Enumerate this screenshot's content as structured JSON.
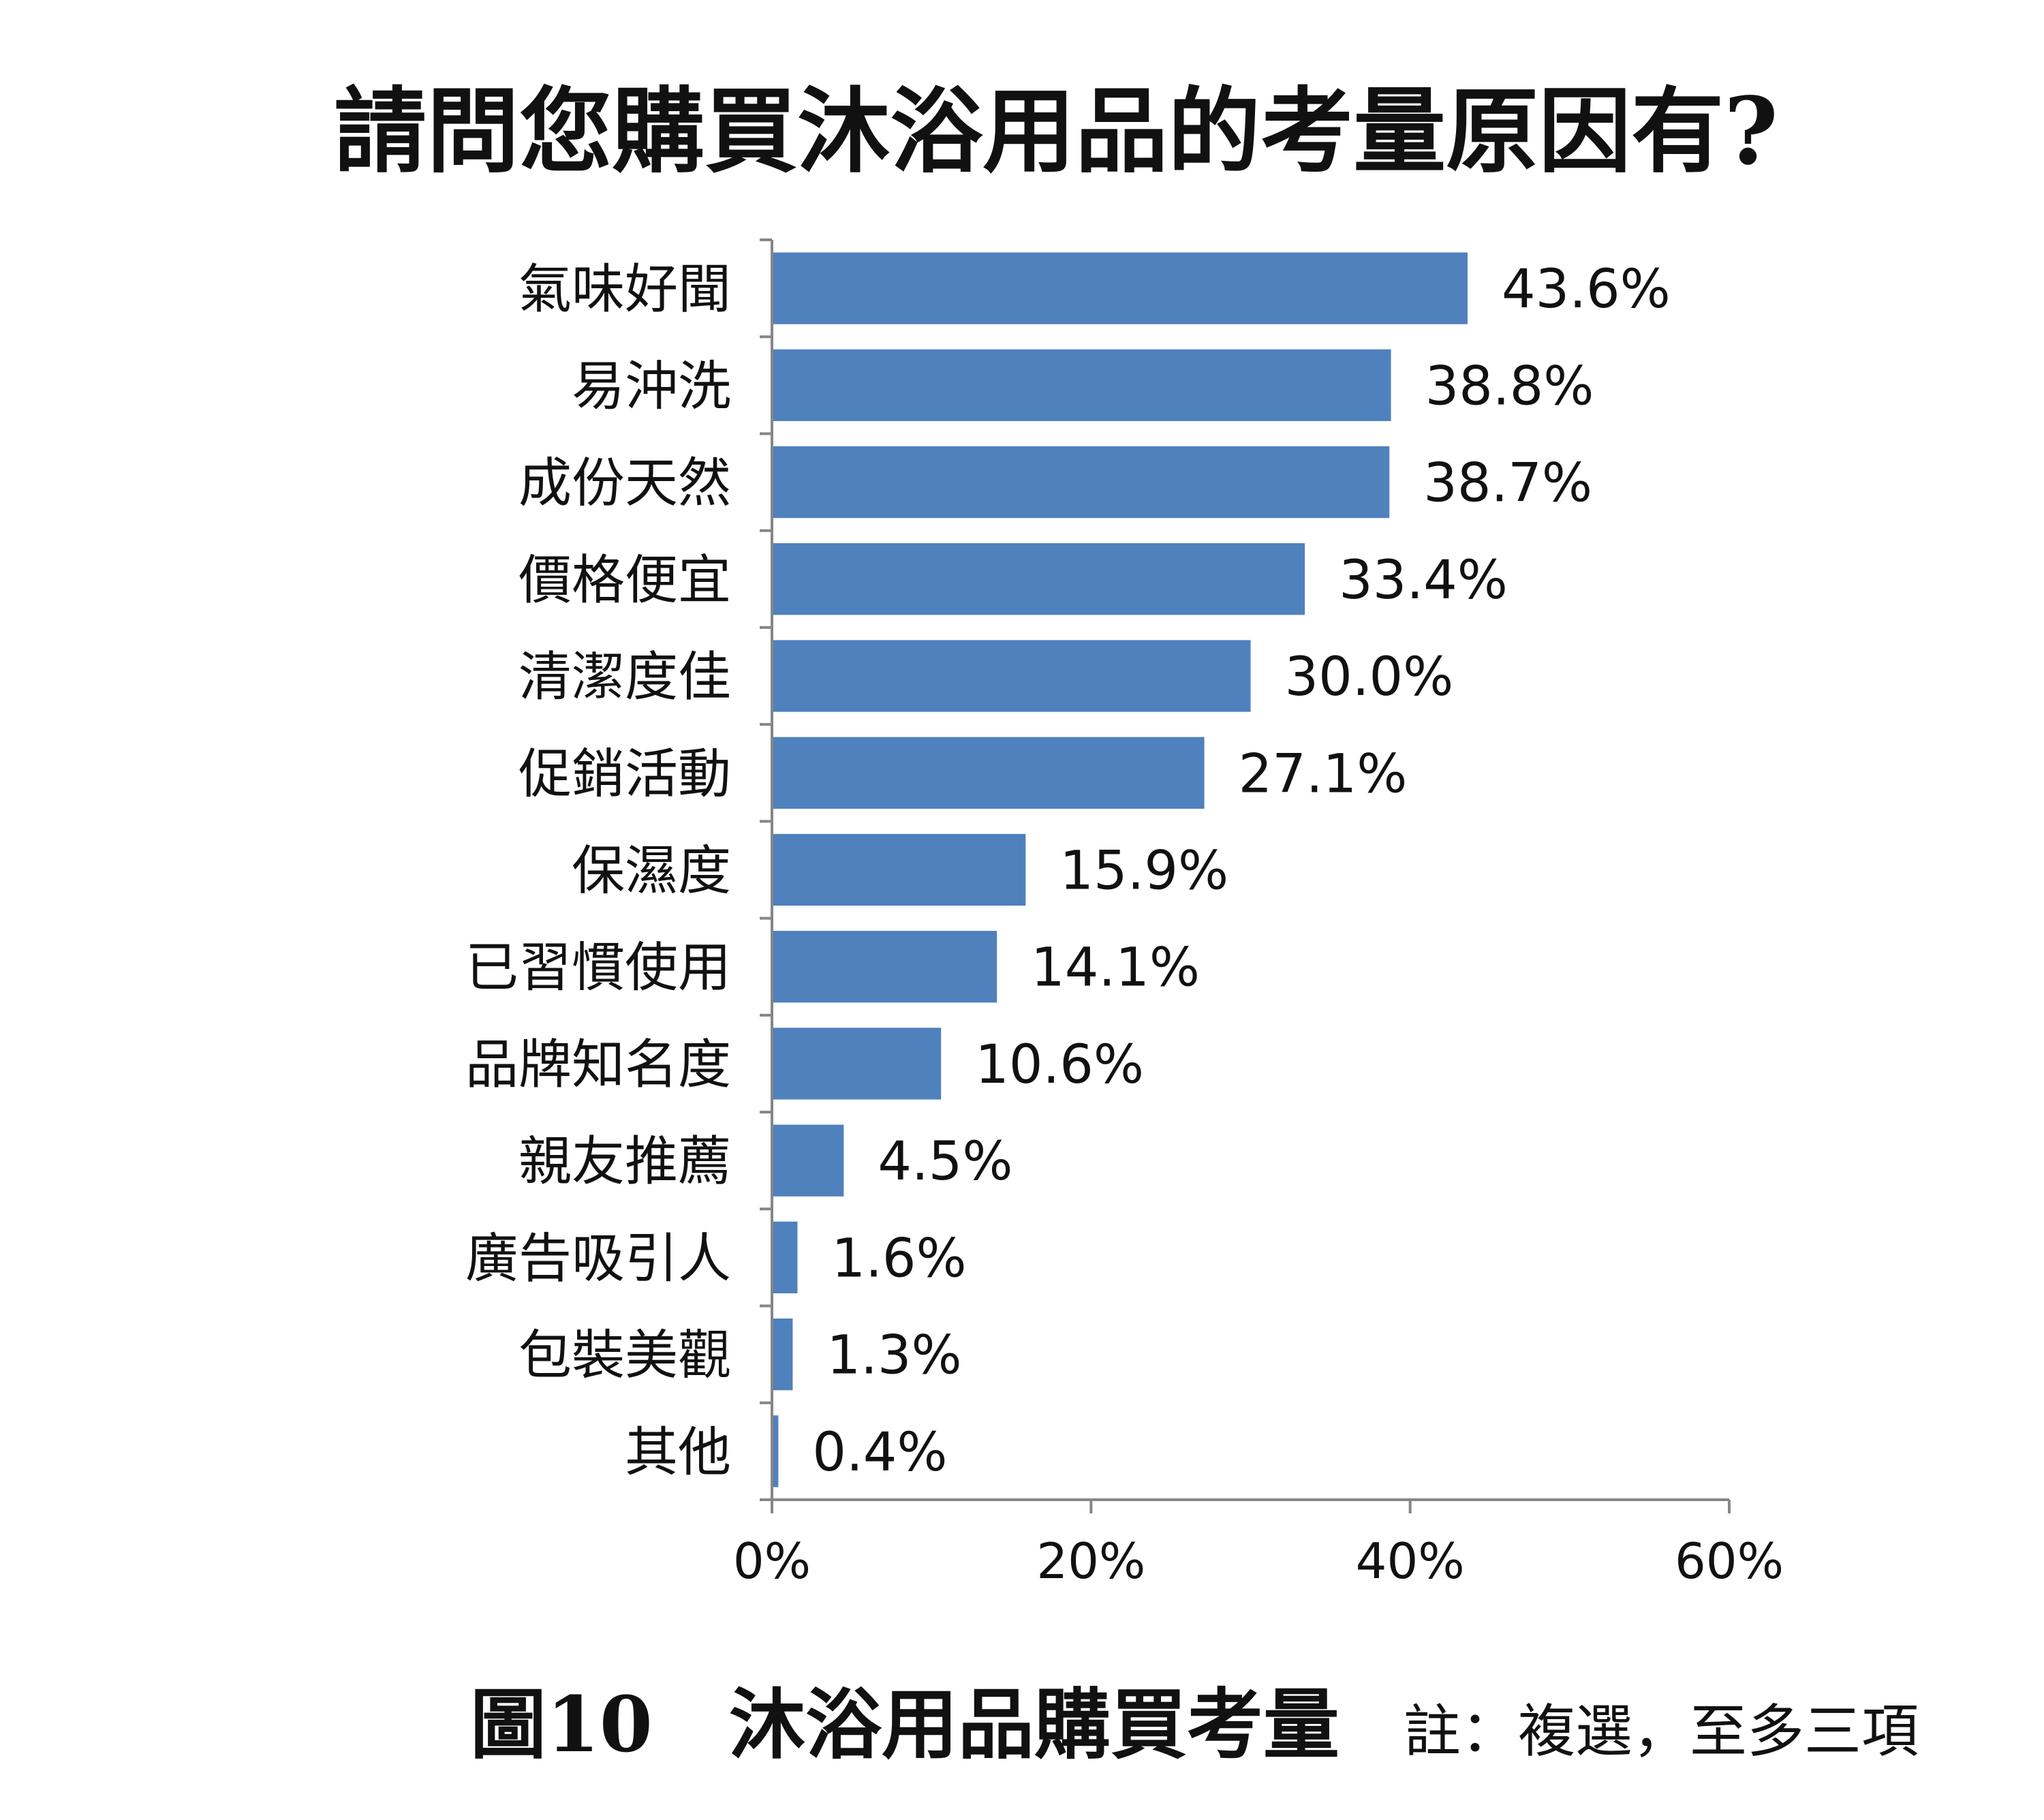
{
  "chart_data": {
    "type": "bar",
    "orientation": "horizontal",
    "title": "請問您購買沐浴用品的考量原因有?",
    "categories": [
      "氣味好聞",
      "易沖洗",
      "成份天然",
      "價格便宜",
      "清潔度佳",
      "促銷活動",
      "保濕度",
      "已習慣使用",
      "品牌知名度",
      "親友推薦",
      "廣告吸引人",
      "包裝美觀",
      "其他"
    ],
    "values": [
      43.6,
      38.8,
      38.7,
      33.4,
      30.0,
      27.1,
      15.9,
      14.1,
      10.6,
      4.5,
      1.6,
      1.3,
      0.4
    ],
    "value_labels": [
      "43.6%",
      "38.8%",
      "38.7%",
      "33.4%",
      "30.0%",
      "27.1%",
      "15.9%",
      "14.1%",
      "10.6%",
      "4.5%",
      "1.6%",
      "1.3%",
      "0.4%"
    ],
    "xlim": [
      0,
      60
    ],
    "xticks": [
      0,
      20,
      40,
      60
    ],
    "xtick_labels": [
      "0%",
      "20%",
      "40%",
      "60%"
    ],
    "bar_color": "#4F81BD",
    "grid": false
  },
  "caption": {
    "figure": "圖10　沐浴用品購買考量",
    "note": "註：複選，至多三項"
  }
}
